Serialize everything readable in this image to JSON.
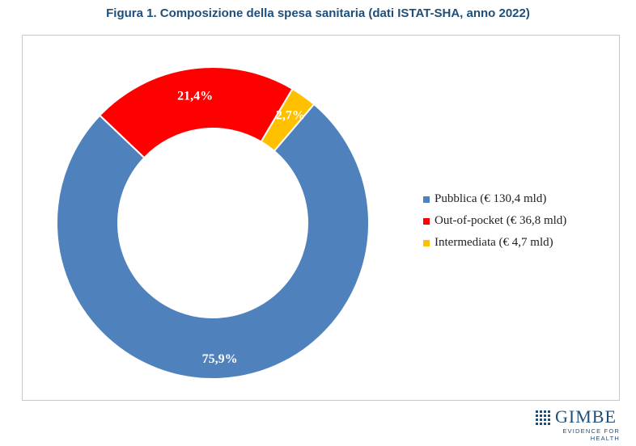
{
  "chart_data": {
    "type": "pie",
    "style": "donut",
    "title": "Figura 1. Composizione della spesa sanitaria (dati ISTAT-SHA, anno 2022)",
    "slices": [
      {
        "name": "Pubblica",
        "legend": "Pubblica (€ 130,4 mld)",
        "amount": 130.4,
        "percent": 75.9,
        "label": "75,9%",
        "color": "#4f81bd"
      },
      {
        "name": "Out-of-pocket",
        "legend": "Out-of-pocket (€ 36,8 mld)",
        "amount": 36.8,
        "percent": 21.4,
        "label": "21,4%",
        "color": "#ff0000"
      },
      {
        "name": "Intermediata",
        "legend": "Intermediata (€ 4,7 mld)",
        "amount": 4.7,
        "percent": 2.7,
        "label": "2,7%",
        "color": "#ffc000"
      }
    ],
    "legend_position": "right"
  },
  "logo": {
    "name": "GIMBE",
    "tagline": "EVIDENCE FOR HEALTH"
  }
}
